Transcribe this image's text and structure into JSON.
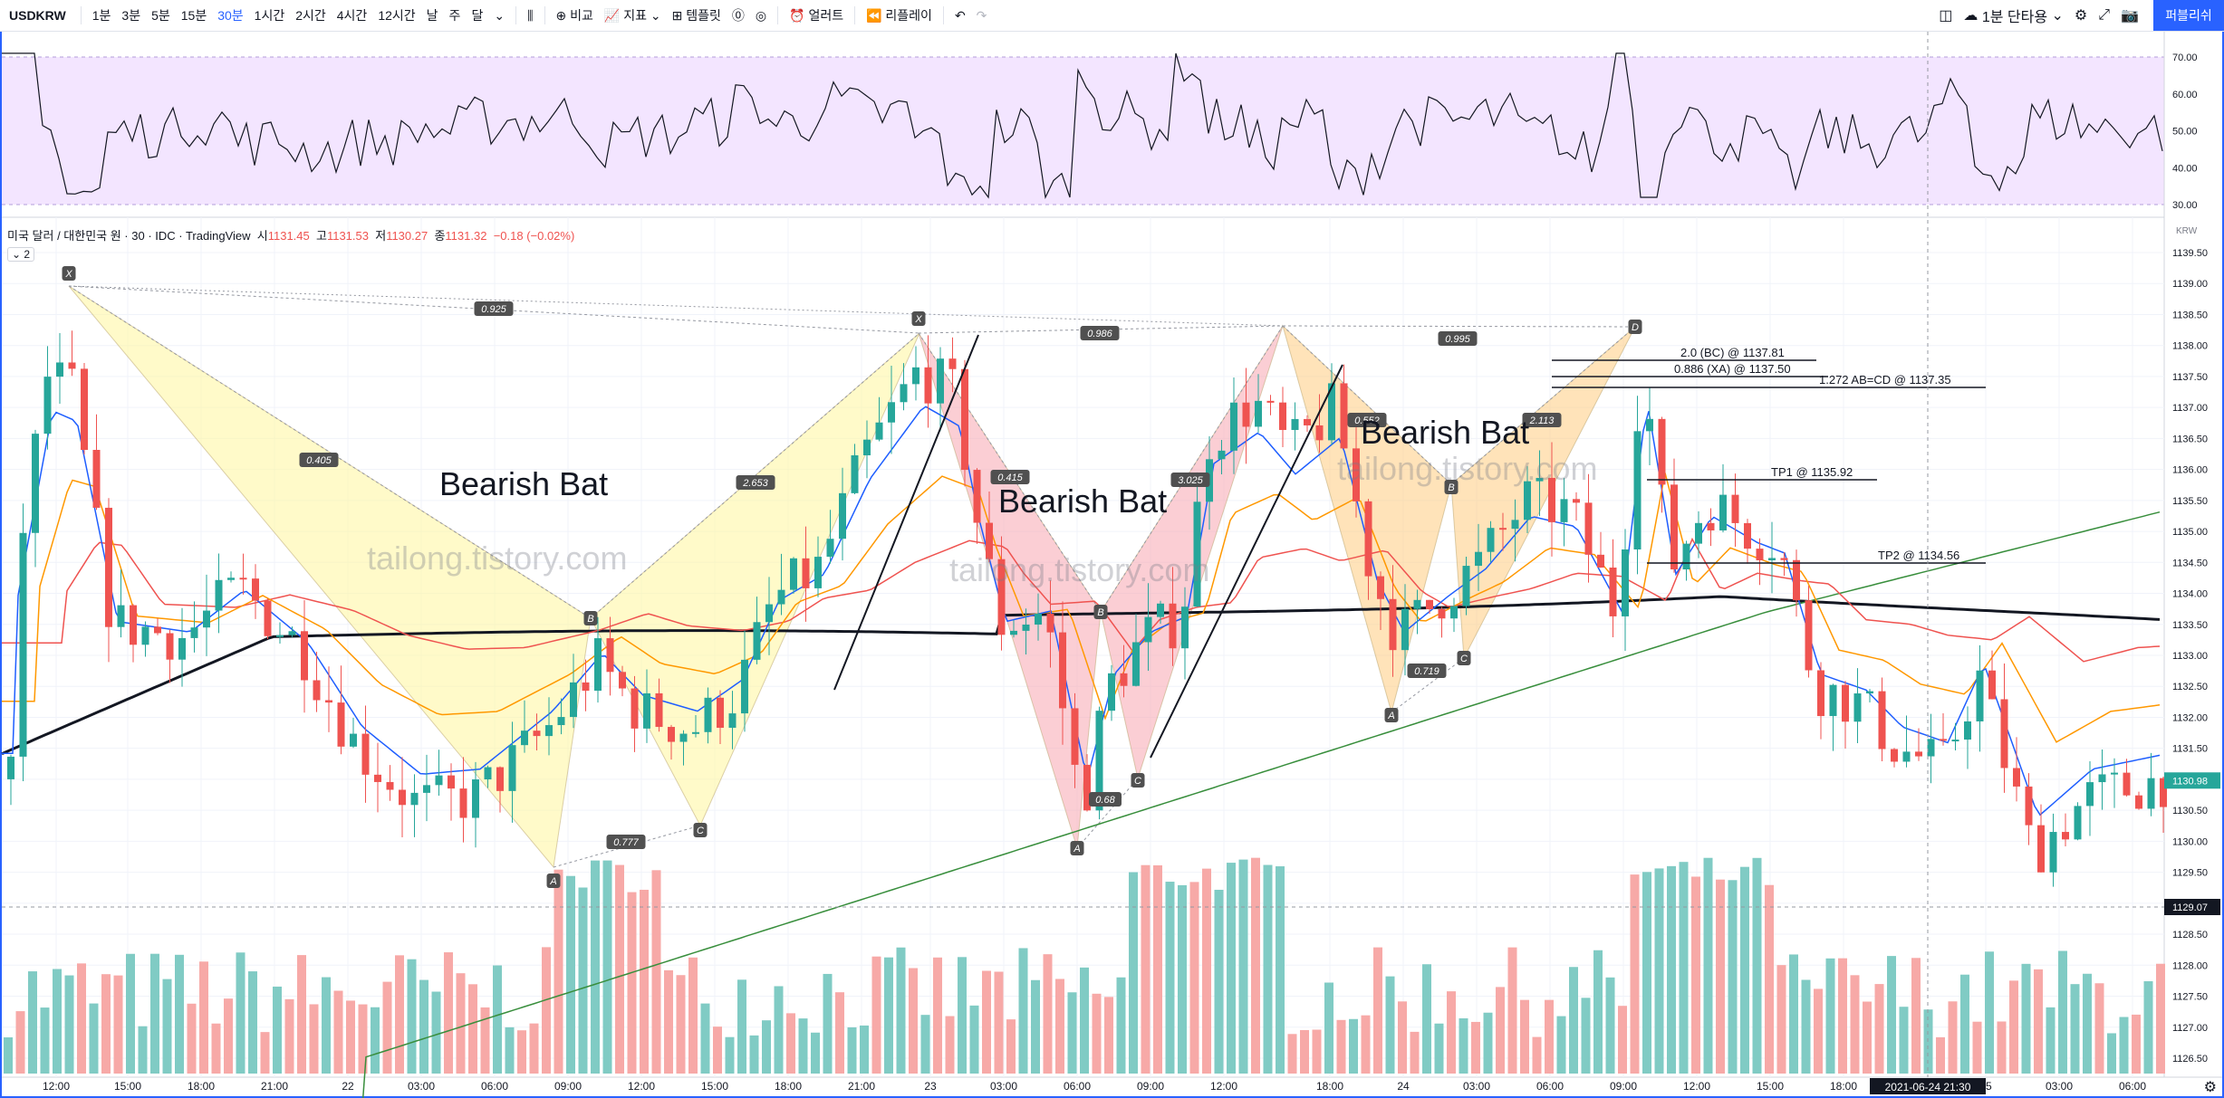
{
  "toolbar": {
    "symbol": "USDKRW",
    "intervals": [
      "1분",
      "3분",
      "5분",
      "15분",
      "30분",
      "1시간",
      "2시간",
      "4시간",
      "12시간",
      "날",
      "주",
      "달"
    ],
    "active_interval": "30분",
    "compare": "비교",
    "indicators": "지표",
    "templates": "템플릿",
    "alert": "얼러트",
    "replay": "리플레이",
    "layout": "1분 단타용",
    "publish": "퍼블리쉬"
  },
  "legend": {
    "title": "미국 달러 / 대한민국 원 · 30 · IDC · TradingView",
    "open_label": "시",
    "open": "1131.45",
    "high_label": "고",
    "high": "1131.53",
    "low_label": "저",
    "low": "1130.27",
    "close_label": "종",
    "close": "1131.32",
    "change": "−0.18 (−0.02%)",
    "indicator_count": "2"
  },
  "rsi_axis": [
    "70.00",
    "60.00",
    "50.00",
    "40.00",
    "30.00"
  ],
  "price_axis": [
    "1139.50",
    "1139.00",
    "1138.50",
    "1138.00",
    "1137.50",
    "1137.00",
    "1136.50",
    "1136.00",
    "1135.50",
    "1135.00",
    "1134.50",
    "1134.00",
    "1133.50",
    "1133.00",
    "1132.50",
    "1132.00",
    "1131.50",
    "1131.00",
    "1130.50",
    "1130.00",
    "1129.50",
    "1129.00",
    "1128.50",
    "1128.00",
    "1127.50",
    "1127.00",
    "1126.50"
  ],
  "price_axis_top": "KRW",
  "last_price": "1130.98",
  "crosshair_price": "1129.07",
  "time_axis": [
    "12:00",
    "15:00",
    "18:00",
    "21:00",
    "22",
    "03:00",
    "06:00",
    "09:00",
    "12:00",
    "15:00",
    "18:00",
    "21:00",
    "23",
    "03:00",
    "06:00",
    "09:00",
    "12:00",
    "18:00",
    "24",
    "03:00",
    "06:00",
    "09:00",
    "12:00",
    "15:00",
    "18:00",
    "25",
    "03:00",
    "06:00"
  ],
  "crosshair_time": "2021-06-24  21:30",
  "patterns": {
    "label": "Bearish Bat",
    "watermark": "tailong.tistory.com",
    "points": [
      "X",
      "A",
      "B",
      "C",
      "D"
    ],
    "ratios": [
      "0.925",
      "0.405",
      "2.653",
      "0.777",
      "0.986",
      "0.415",
      "3.025",
      "0.68",
      "0.995",
      "0.552",
      "2.113",
      "0.719"
    ]
  },
  "targets": {
    "bc": "2.0 (BC) @ 1137.81",
    "xa": "0.886 (XA) @ 1137.50",
    "abcd": "1.272 AB=CD @ 1137.35",
    "tp1": "TP1 @ 1135.92",
    "tp2": "TP2 @ 1134.56"
  },
  "colors": {
    "accent": "#2962ff",
    "up": "#26a69a",
    "down": "#ef5350",
    "rsi_band": "#f3e5ff",
    "pattern_yellow": "#fff59d",
    "pattern_red": "#f8a5b0",
    "pattern_orange": "#ffcc80"
  }
}
